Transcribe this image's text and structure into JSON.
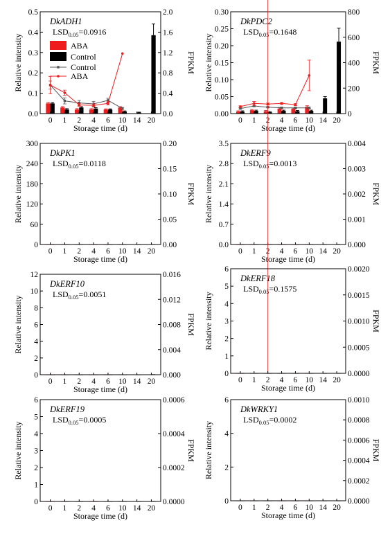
{
  "colors": {
    "aba": "#ee1c1c",
    "control": "#000000",
    "control_line": "#555555",
    "axis": "#000000"
  },
  "chart_data": [
    {
      "type": "bar",
      "gene": "DkADH1",
      "lsd_label": "LSD",
      "lsd_sub": "0.05",
      "lsd_value": "=0.0916",
      "ylabel": "Relative intensity",
      "y2label": "FPKM",
      "xlabel": "Storage time (d)",
      "categories": [
        "0",
        "1",
        "2",
        "4",
        "6",
        "10",
        "14",
        "20"
      ],
      "ylim": [
        0,
        2.0
      ],
      "yticks": [
        "0.0",
        "0.4",
        "0.8",
        "1.2",
        "1.6",
        "2.0"
      ],
      "y2lim": [
        0,
        0.5
      ],
      "y2ticks": [
        "0.0",
        "0.1",
        "0.2",
        "0.3",
        "0.4",
        "0.5"
      ],
      "legend": {
        "items": [
          "ABA",
          "Control",
          "Control",
          "ABA"
        ]
      },
      "series": [
        {
          "name": "ABA",
          "kind": "bar",
          "values": [
            0.05,
            0.03,
            0.02,
            0.02,
            0.02,
            0.03,
            null,
            null
          ],
          "err": [
            0.004,
            0.004,
            0.004,
            0.004,
            0.003,
            0.004,
            null,
            null
          ]
        },
        {
          "name": "Control",
          "kind": "bar",
          "values": [
            0.05,
            0.02,
            0.03,
            0.025,
            0.02,
            0.01,
            0.005,
            0.385
          ],
          "err": [
            0.004,
            0.004,
            0.004,
            0.004,
            0.003,
            0.003,
            0.002,
            0.055
          ]
        },
        {
          "name": "Control",
          "kind": "line",
          "values": [
            0.56,
            0.25,
            0.21,
            0.19,
            0.26,
            0.1,
            null,
            null
          ],
          "err": [
            0.08,
            0.06,
            0.05,
            0.05,
            0.04,
            0.02,
            null,
            null
          ]
        },
        {
          "name": "ABA",
          "kind": "line",
          "values": [
            0.56,
            0.41,
            0.17,
            0.16,
            0.2,
            1.18,
            null,
            null
          ],
          "err": [
            0.17,
            0.05,
            0.03,
            0.03,
            0.03,
            0.0,
            null,
            null
          ]
        }
      ]
    },
    {
      "type": "bar",
      "gene": "DkPDC2",
      "lsd_label": "LSD",
      "lsd_sub": "0.05",
      "lsd_value": "=0.1648",
      "ylabel": "Relative intensity",
      "y2label": "FPKM",
      "xlabel": "Storage time (d)",
      "categories": [
        "0",
        "1",
        "2",
        "4",
        "6",
        "10",
        "14",
        "20"
      ],
      "ylim": [
        0,
        800
      ],
      "yticks": [
        "0",
        "200",
        "400",
        "600",
        "800"
      ],
      "y2lim": [
        0,
        0.3
      ],
      "y2ticks": [
        "0.00",
        "0.05",
        "0.10",
        "0.15",
        "0.20",
        "0.25",
        "0.30"
      ],
      "series": [
        {
          "name": "ABA",
          "kind": "bar",
          "values": [
            0.006,
            0.01,
            0.007,
            0.015,
            0.014,
            0.02,
            null,
            null
          ],
          "err": [
            0.002,
            0.002,
            0.002,
            0.003,
            0.002,
            0.003,
            null,
            null
          ]
        },
        {
          "name": "Control",
          "kind": "bar",
          "values": [
            0.006,
            0.008,
            0.004,
            0.008,
            0.007,
            0.008,
            0.045,
            0.212
          ],
          "err": [
            0.002,
            0.002,
            0.002,
            0.002,
            0.002,
            0.002,
            0.005,
            0.04
          ]
        },
        {
          "name": "Control",
          "kind": "line",
          "values": [
            40,
            60,
            50,
            45,
            45,
            45,
            null,
            null
          ],
          "err": [
            5,
            6,
            5,
            5,
            5,
            5,
            null,
            null
          ]
        },
        {
          "name": "ABA",
          "kind": "line",
          "values": [
            55,
            80,
            75,
            80,
            70,
            300,
            null,
            null
          ],
          "err": [
            6,
            15,
            8,
            8,
            8,
            120,
            null,
            null
          ]
        }
      ]
    },
    {
      "type": "bar",
      "gene": "DkPK1",
      "lsd_label": "LSD",
      "lsd_sub": "0.05",
      "lsd_value": "=0.0118",
      "ylabel": "Relative intensity",
      "y2label": "FPKM",
      "xlabel": "Storage time (d)",
      "categories": [
        "0",
        "1",
        "2",
        "4",
        "6",
        "10",
        "14",
        "20"
      ],
      "ylim": [
        0,
        0.2
      ],
      "yticks": [
        "0.00",
        "0.05",
        "0.10",
        "0.15",
        "0.20"
      ],
      "y2lim": [
        0,
        300
      ],
      "y2ticks": [
        "0",
        "60",
        "120",
        "180",
        "240",
        "300"
      ],
      "series": [
        {
          "name": "ABA",
          "kind": "bar",
          "values": [
            0.015,
            0.02,
            0.025,
            0.02,
            0.02,
            0.05,
            null,
            null
          ],
          "err": [
            0.003,
            0.003,
            0.003,
            0.003,
            0.003,
            0.007,
            null,
            null
          ]
        },
        {
          "name": "Control",
          "kind": "bar",
          "values": [
            0.015,
            0.02,
            0.032,
            0.022,
            0.017,
            0.022,
            0.018,
            0.14
          ],
          "err": [
            0.003,
            0.003,
            0.003,
            0.003,
            0.003,
            0.003,
            0.003,
            0.008
          ]
        },
        {
          "name": "Control",
          "kind": "line",
          "values": [
            20,
            30,
            45,
            30,
            30,
            30,
            null,
            null
          ],
          "err": [
            4,
            4,
            5,
            4,
            4,
            4,
            null,
            null
          ]
        },
        {
          "name": "ABA",
          "kind": "line",
          "values": [
            25,
            35,
            45,
            25,
            30,
            120,
            null,
            null
          ],
          "err": [
            4,
            5,
            5,
            4,
            4,
            70,
            null,
            null
          ]
        }
      ]
    },
    {
      "type": "bar",
      "gene": "DkERF9",
      "lsd_label": "LSD",
      "lsd_sub": "0.05",
      "lsd_value": "=0.0013",
      "ylabel": "Relative intensity",
      "y2label": "FPKM",
      "xlabel": "Storage time (d)",
      "categories": [
        "0",
        "1",
        "2",
        "4",
        "6",
        "10",
        "14",
        "20"
      ],
      "ylim": [
        0,
        0.004
      ],
      "yticks": [
        "0.000",
        "0.001",
        "0.002",
        "0.003",
        "0.004"
      ],
      "y2lim": [
        0,
        3.5
      ],
      "y2ticks": [
        "0.0",
        "0.7",
        "1.4",
        "2.1",
        "2.8",
        "3.5"
      ],
      "series": [
        {
          "name": "ABA",
          "kind": "bar",
          "values": [
            0.00045,
            0.0001,
            5e-05,
            0.0004,
            0.0001,
            0.00135,
            null,
            null
          ],
          "err": [
            0.0001,
            3e-05,
            2e-05,
            8e-05,
            3e-05,
            0.0003,
            null,
            null
          ]
        },
        {
          "name": "Control",
          "kind": "bar",
          "values": [
            0.00045,
            8e-05,
            5e-05,
            0.00025,
            0.0001,
            0.0002,
            0.0007,
            0.00265
          ],
          "err": [
            0.0001,
            3e-05,
            2e-05,
            6e-05,
            3e-05,
            5e-05,
            0.0002,
            0.00035
          ]
        },
        {
          "name": "Control",
          "kind": "line",
          "values": [
            0.95,
            0.7,
            0.35,
            0.25,
            0.3,
            0.4,
            null,
            null
          ],
          "err": [
            0.2,
            0.15,
            0.1,
            0.08,
            0.1,
            0.1,
            null,
            null
          ]
        },
        {
          "name": "ABA",
          "kind": "line",
          "values": [
            0.95,
            0.3,
            0.15,
            0.35,
            0.3,
            2.2,
            null,
            null
          ],
          "err": [
            0.3,
            0.15,
            0.08,
            0.1,
            0.1,
            0.8,
            null,
            null
          ]
        }
      ]
    },
    {
      "type": "bar",
      "gene": "DkERF10",
      "lsd_label": "LSD",
      "lsd_sub": "0.05",
      "lsd_value": "=0.0051",
      "ylabel": "Relative intensity",
      "y2label": "FPKM",
      "xlabel": "Storage time (d)",
      "categories": [
        "0",
        "1",
        "2",
        "4",
        "6",
        "10",
        "14",
        "20"
      ],
      "ylim": [
        0,
        0.016
      ],
      "yticks": [
        "0.000",
        "0.004",
        "0.008",
        "0.012",
        "0.016"
      ],
      "y2lim": [
        0,
        12
      ],
      "y2ticks": [
        "0",
        "2",
        "4",
        "6",
        "8",
        "10",
        "12"
      ],
      "series": [
        {
          "name": "ABA",
          "kind": "bar",
          "values": [
            0.0001,
            0.0001,
            0.0001,
            0.0001,
            0.0001,
            0.0043,
            null,
            null
          ],
          "err": [
            3e-05,
            3e-05,
            3e-05,
            3e-05,
            3e-05,
            0.0004,
            null,
            null
          ]
        },
        {
          "name": "Control",
          "kind": "bar",
          "values": [
            0.0001,
            0.0001,
            0.0001,
            0.0001,
            0.0001,
            0.0001,
            0.0001,
            0.0122
          ],
          "err": [
            3e-05,
            3e-05,
            3e-05,
            3e-05,
            3e-05,
            3e-05,
            3e-05,
            0.0022
          ]
        },
        {
          "name": "Control",
          "kind": "line",
          "values": [
            4.9,
            5.0,
            4.3,
            4.2,
            4.5,
            4.7,
            null,
            null
          ],
          "err": [
            0.8,
            0.6,
            0.4,
            0.4,
            0.4,
            0.5,
            null,
            null
          ]
        },
        {
          "name": "ABA",
          "kind": "line",
          "values": [
            4.9,
            4.9,
            3.5,
            3.1,
            3.3,
            10.8,
            null,
            null
          ],
          "err": [
            0.8,
            0.6,
            0.4,
            0.3,
            0.3,
            0.8,
            null,
            null
          ]
        }
      ]
    },
    {
      "type": "bar",
      "gene": "DkERF18",
      "lsd_label": "LSD",
      "lsd_sub": "0.05",
      "lsd_value": "=0.1575",
      "ylabel": "Relative intensity",
      "y2label": "FPKM",
      "xlabel": "Storage time (d)",
      "categories": [
        "0",
        "1",
        "2",
        "4",
        "6",
        "10",
        "14",
        "20"
      ],
      "ylim": [
        0,
        0.002
      ],
      "yticks": [
        "0.0000",
        "0.0005",
        "0.0010",
        "0.0015",
        "0.0020"
      ],
      "y2lim": [
        0,
        6
      ],
      "y2ticks": [
        "0",
        "1",
        "2",
        "3",
        "4",
        "5",
        "6"
      ],
      "series": [
        {
          "name": "ABA",
          "kind": "bar",
          "values": [
            0.0006,
            0.0004,
            5e-05,
            0.00045,
            0.00045,
            0.00072,
            null,
            null
          ],
          "err": [
            0.00012,
            0.0001,
            3e-05,
            0.0001,
            0.0001,
            0.00012,
            null,
            null
          ]
        },
        {
          "name": "Control",
          "kind": "bar",
          "values": [
            0.0006,
            0.00025,
            0.0001,
            0.00055,
            0.00025,
            0.00033,
            0.00033,
            0.00135
          ],
          "err": [
            0.00012,
            5e-05,
            3e-05,
            0.0001,
            5e-05,
            6e-05,
            6e-05,
            0.00015
          ]
        },
        {
          "name": "Control",
          "kind": "line",
          "values": [
            1.8,
            1.2,
            0.5,
            1.6,
            0.9,
            1.0,
            null,
            null
          ],
          "err": [
            0.3,
            0.3,
            0.2,
            0.4,
            0.3,
            0.3,
            null,
            null
          ]
        },
        {
          "name": "ABA",
          "kind": "line",
          "values": [
            1.8,
            1.6,
            0.2,
            1.2,
            0.9,
            2.0,
            null,
            null
          ],
          "err": [
            1.3,
            0.4,
            0.2,
            0.4,
            0.5,
            1.6,
            null,
            null
          ]
        }
      ]
    },
    {
      "type": "bar",
      "gene": "DkERF19",
      "lsd_label": "LSD",
      "lsd_sub": "0.05",
      "lsd_value": "=0.0005",
      "ylabel": "Relative intensity",
      "y2label": "FPKM",
      "xlabel": "Storage time (d)",
      "categories": [
        "0",
        "1",
        "2",
        "4",
        "6",
        "10",
        "14",
        "20"
      ],
      "ylim": [
        0,
        0.0006
      ],
      "yticks": [
        "0.0000",
        "0.0002",
        "0.0004",
        "0.0006"
      ],
      "y2lim": [
        0,
        6
      ],
      "y2ticks": [
        "0",
        "1",
        "2",
        "3",
        "4",
        "5",
        "6"
      ],
      "series": [
        {
          "name": "ABA",
          "kind": "bar",
          "values": [
            0.00032,
            0.00012,
            0.0001,
            0.00023,
            0.00039,
            0.00019,
            null,
            null
          ],
          "err": [
            6e-05,
            2e-05,
            2e-05,
            3e-05,
            4e-05,
            2e-05,
            null,
            null
          ]
        },
        {
          "name": "Control",
          "kind": "bar",
          "values": [
            0.00032,
            0.0001,
            0.00011,
            0.00015,
            0.00011,
            0.00022,
            0.00026,
            0.00012
          ],
          "err": [
            6e-05,
            2e-05,
            2e-05,
            3e-05,
            2e-05,
            5e-05,
            5e-05,
            3e-05
          ]
        },
        {
          "name": "Control",
          "kind": "line",
          "values": [
            1.9,
            1.2,
            0.8,
            1.4,
            1.0,
            1.0,
            null,
            null
          ],
          "err": [
            0.4,
            0.3,
            0.2,
            0.3,
            0.3,
            0.3,
            null,
            null
          ]
        },
        {
          "name": "ABA",
          "kind": "line",
          "values": [
            1.9,
            2.4,
            1.0,
            1.2,
            0.8,
            2.0,
            null,
            null
          ],
          "err": [
            0.4,
            0.5,
            0.2,
            0.3,
            0.2,
            0.4,
            null,
            null
          ]
        }
      ]
    },
    {
      "type": "bar",
      "gene": "DkWRKY1",
      "lsd_label": "LSD",
      "lsd_sub": "0.05",
      "lsd_value": "=0.0002",
      "ylabel": "Relative intensity",
      "y2label": "FPKM",
      "xlabel": "Storage time (d)",
      "categories": [
        "0",
        "1",
        "2",
        "4",
        "6",
        "10",
        "14",
        "20"
      ],
      "ylim": [
        0,
        0.001
      ],
      "yticks": [
        "0.0000",
        "0.0002",
        "0.0004",
        "0.0006",
        "0.0008",
        "0.0010"
      ],
      "y2lim": [
        0,
        6
      ],
      "y2ticks": [
        "0",
        "2",
        "4",
        "6"
      ],
      "series": [
        {
          "name": "ABA",
          "kind": "bar",
          "values": [
            0.00042,
            0.00018,
            0.00016,
            0.00025,
            0.00032,
            0.00068,
            null,
            null
          ],
          "err": [
            5e-05,
            3e-05,
            3e-05,
            4e-05,
            4e-05,
            3e-05,
            null,
            null
          ]
        },
        {
          "name": "Control",
          "kind": "bar",
          "values": [
            0.00042,
            0.00018,
            0.00034,
            0.00029,
            0.00035,
            0.00017,
            0.00025,
            0.00025
          ],
          "err": [
            5e-05,
            3e-05,
            5e-05,
            5e-05,
            5e-05,
            3e-05,
            3e-05,
            3e-05
          ]
        },
        {
          "name": "Control",
          "kind": "line",
          "values": [
            0.9,
            0.7,
            0.7,
            0.8,
            0.8,
            0.8,
            null,
            null
          ],
          "err": [
            0.2,
            0.2,
            0.2,
            0.2,
            0.2,
            0.2,
            null,
            null
          ]
        },
        {
          "name": "ABA",
          "kind": "line",
          "values": [
            0.9,
            0.8,
            0.8,
            1.1,
            1.3,
            4.0,
            null,
            null
          ],
          "err": [
            0.2,
            0.2,
            0.2,
            0.3,
            0.3,
            1.0,
            null,
            null
          ]
        }
      ]
    }
  ]
}
